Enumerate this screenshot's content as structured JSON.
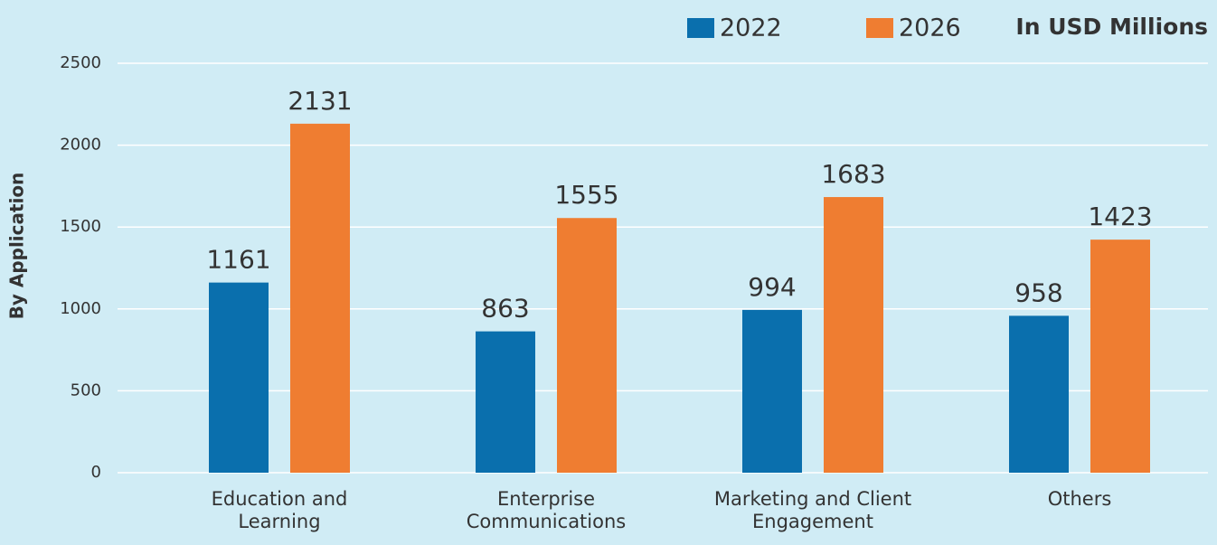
{
  "chart_data": {
    "type": "bar",
    "y_label": "By Application",
    "unit_note": "In USD Millions",
    "categories": [
      "Education and\nLearning",
      "Enterprise\nCommunications",
      "Marketing and Client\nEngagement",
      "Others"
    ],
    "series": [
      {
        "name": "2022",
        "color": "#0a6fad",
        "values": [
          1161,
          863,
          994,
          958
        ]
      },
      {
        "name": "2026",
        "color": "#ef7d31",
        "values": [
          2131,
          1555,
          1683,
          1423
        ]
      }
    ],
    "ylim": [
      0,
      2500
    ],
    "yticks": [
      0,
      500,
      1000,
      1500,
      2000,
      2500
    ],
    "grid": true,
    "legend": "top-right"
  }
}
